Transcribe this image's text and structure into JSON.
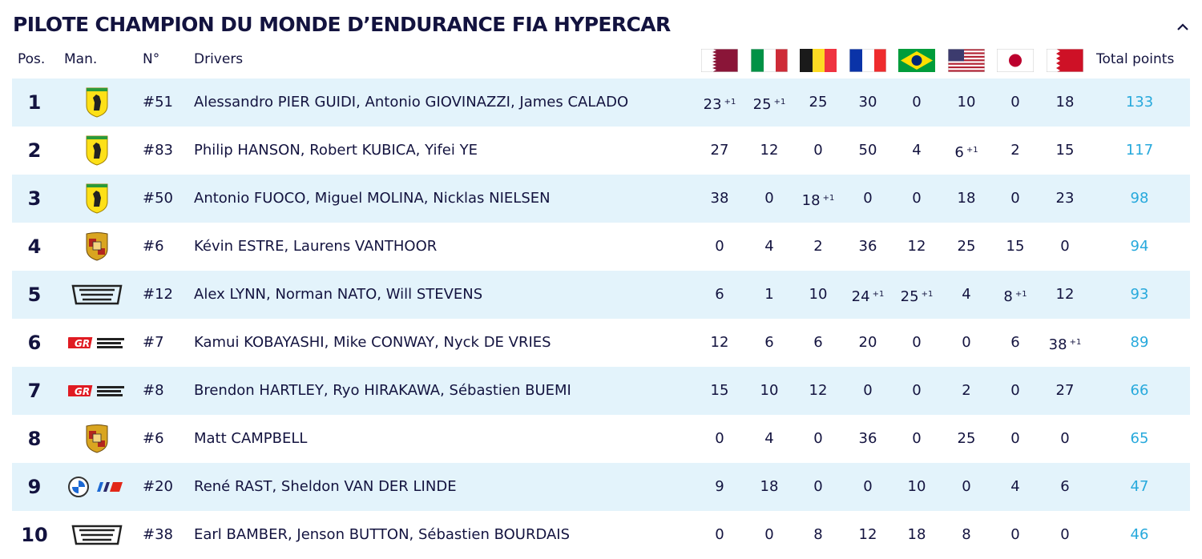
{
  "header": {
    "title": "PILOTE CHAMPION DU MONDE D’ENDURANCE FIA HYPERCAR"
  },
  "table": {
    "columns": {
      "pos": "Pos.",
      "man": "Man.",
      "number": "N°",
      "drivers": "Drivers",
      "total": "Total points"
    },
    "rows": [
      {
        "pos": "1",
        "number": "#51",
        "drivers": "Alessandro PIER GUIDI, Antonio GIOVINAZZI, James CALADO",
        "points": [
          {
            "points": "23",
            "bonus": "+1"
          },
          {
            "points": "25",
            "bonus": "+1"
          },
          "25",
          "30",
          "0",
          "10",
          "0",
          "18"
        ],
        "total": "133"
      },
      {
        "pos": "2",
        "number": "#83",
        "drivers": "Philip HANSON, Robert KUBICA, Yifei YE",
        "points": [
          "27",
          "12",
          "0",
          "50",
          "4",
          {
            "points": "6",
            "bonus": "+1"
          },
          "2",
          "15"
        ],
        "total": "117"
      },
      {
        "pos": "3",
        "number": "#50",
        "drivers": "Antonio FUOCO, Miguel MOLINA, Nicklas NIELSEN",
        "points": [
          "38",
          "0",
          {
            "points": "18",
            "bonus": "+1"
          },
          "0",
          "0",
          "18",
          "0",
          "23"
        ],
        "total": "98"
      },
      {
        "pos": "4",
        "number": "#6",
        "drivers": "Kévin ESTRE, Laurens VANTHOOR",
        "points": [
          "0",
          "4",
          "2",
          "36",
          "12",
          "25",
          "15",
          "0"
        ],
        "total": "94"
      },
      {
        "pos": "5",
        "number": "#12",
        "drivers": "Alex LYNN, Norman NATO, Will STEVENS",
        "points": [
          "6",
          "1",
          "10",
          {
            "points": "24",
            "bonus": "+1"
          },
          {
            "points": "25",
            "bonus": "+1"
          },
          "4",
          {
            "points": "8",
            "bonus": "+1"
          },
          "12"
        ],
        "total": "93"
      },
      {
        "pos": "6",
        "number": "#7",
        "drivers": "Kamui KOBAYASHI, Mike CONWAY, Nyck DE VRIES",
        "points": [
          "12",
          "6",
          "6",
          "20",
          "0",
          "0",
          "6",
          {
            "points": "38",
            "bonus": "+1"
          }
        ],
        "total": "89"
      },
      {
        "pos": "7",
        "number": "#8",
        "drivers": "Brendon HARTLEY, Ryo HIRAKAWA, Sébastien BUEMI",
        "points": [
          "15",
          "10",
          "12",
          "0",
          "0",
          "2",
          "0",
          "27"
        ],
        "total": "66"
      },
      {
        "pos": "8",
        "number": "#6",
        "drivers": "Matt CAMPBELL",
        "points": [
          "0",
          "4",
          "0",
          "36",
          "0",
          "25",
          "0",
          "0"
        ],
        "total": "65"
      },
      {
        "pos": "9",
        "number": "#20",
        "drivers": "René RAST, Sheldon VAN DER LINDE",
        "points": [
          "9",
          "18",
          "0",
          "0",
          "10",
          "0",
          "4",
          "6"
        ],
        "total": "47"
      },
      {
        "pos": "10",
        "number": "#38",
        "drivers": "Earl BAMBER, Jenson BUTTON, Sébastien BOURDAIS",
        "points": [
          "0",
          "0",
          "8",
          "12",
          "18",
          "8",
          "0",
          "0"
        ],
        "total": "46"
      }
    ]
  }
}
